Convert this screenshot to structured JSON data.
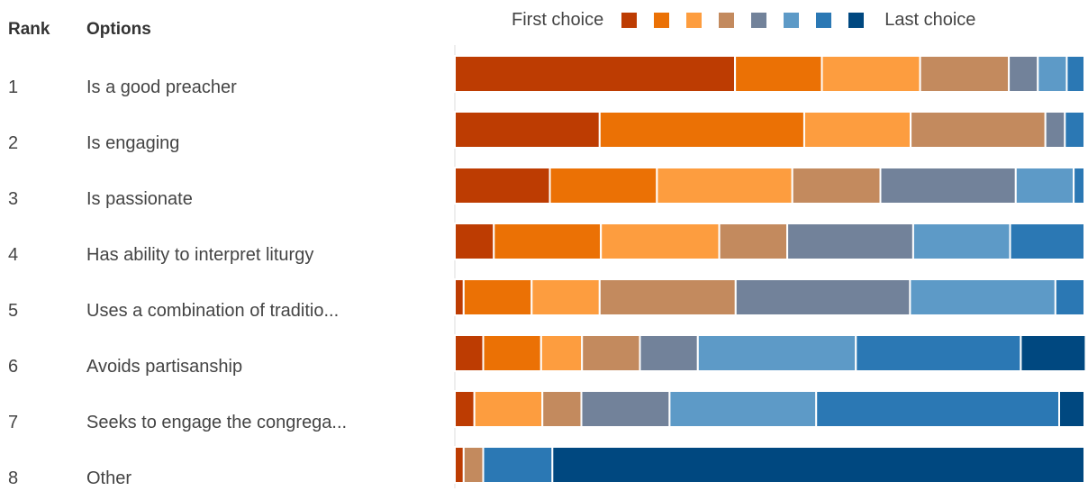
{
  "headers": {
    "rank": "Rank",
    "options": "Options"
  },
  "legend": {
    "first": "First choice",
    "last": "Last choice"
  },
  "colors": [
    "#bd3c02",
    "#eb7105",
    "#fd9d3f",
    "#c38a5e",
    "#72829a",
    "#5d9ac7",
    "#2b78b4",
    "#004880"
  ],
  "chart_data": {
    "type": "bar",
    "orientation": "horizontal",
    "stacked": true,
    "normalized_percent": true,
    "categories": [
      "Is a good preacher",
      "Is engaging",
      "Is passionate",
      "Has ability to interpret liturgy",
      "Uses a combination of traditio...",
      "Avoids partisanship",
      "Seeks to engage the congrega...",
      "Other"
    ],
    "ranks": [
      "1",
      "2",
      "3",
      "4",
      "5",
      "6",
      "7",
      "8"
    ],
    "series": [
      {
        "values": [
          44.5,
          23.0,
          15.1,
          6.2,
          1.4,
          4.5,
          3.1,
          1.4
        ]
      },
      {
        "values": [
          13.8,
          32.5,
          17.0,
          17.0,
          10.8,
          9.2,
          0,
          0
        ]
      },
      {
        "values": [
          15.6,
          16.9,
          21.5,
          18.8,
          10.8,
          6.5,
          10.8,
          0
        ]
      },
      {
        "values": [
          14.1,
          21.4,
          14.0,
          10.8,
          21.6,
          9.2,
          6.2,
          3.1
        ]
      },
      {
        "values": [
          4.6,
          3.1,
          21.5,
          20.0,
          27.7,
          9.2,
          14.0,
          0
        ]
      },
      {
        "values": [
          4.6,
          0,
          9.2,
          15.4,
          23.1,
          25.1,
          23.3,
          0
        ]
      },
      {
        "values": [
          2.8,
          3.1,
          1.7,
          11.8,
          4.6,
          26.2,
          38.6,
          11.0
        ]
      },
      {
        "values": [
          0,
          0,
          0,
          0,
          0,
          10.3,
          4.0,
          84.5
        ]
      }
    ],
    "xlim": [
      0,
      100
    ],
    "legend_position": "top"
  }
}
